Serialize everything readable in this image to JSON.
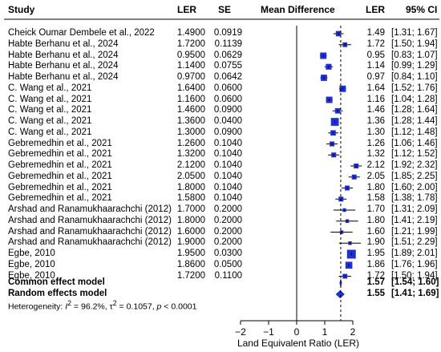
{
  "headers": {
    "study": "Study",
    "ler": "LER",
    "se": "SE",
    "md": "Mean Difference",
    "ler_ci": "LER",
    "ci": "95% CI"
  },
  "colors": {
    "accent": "#1f2fd6",
    "line": "#000000"
  },
  "chart_data": {
    "type": "forest",
    "xlabel": "Land Equivalent Ratio (LER)",
    "xlim": [
      -2,
      2.7
    ],
    "xticks": [
      -2,
      -1,
      0,
      1,
      2
    ],
    "xtick_labels": [
      "−2",
      "−1",
      "0",
      "1",
      "2"
    ],
    "grid": false,
    "studies": [
      {
        "study": "Cheick Oumar Dembele et al., 2022",
        "ler": "1.4900",
        "se": "0.0919",
        "est": 1.49,
        "lo": 1.31,
        "hi": 1.67,
        "label": "1.49",
        "ci": "[1.31; 1.67]",
        "w": 0.45
      },
      {
        "study": "Habte Berhanu et al., 2024",
        "ler": "1.7200",
        "se": "0.1139",
        "est": 1.72,
        "lo": 1.5,
        "hi": 1.94,
        "label": "1.72",
        "ci": "[1.50; 1.94]",
        "w": 0.35
      },
      {
        "study": "Habte Berhanu et al., 2024",
        "ler": "0.9500",
        "se": "0.0629",
        "est": 0.95,
        "lo": 0.83,
        "hi": 1.07,
        "label": "0.95",
        "ci": "[0.83; 1.07]",
        "w": 0.62
      },
      {
        "study": "Habte Berhanu et al., 2024",
        "ler": "1.1400",
        "se": "0.0755",
        "est": 1.14,
        "lo": 0.99,
        "hi": 1.29,
        "label": "1.14",
        "ci": "[0.99; 1.29]",
        "w": 0.52
      },
      {
        "study": "Habte Berhanu et al., 2024",
        "ler": "0.9700",
        "se": "0.0642",
        "est": 0.97,
        "lo": 0.84,
        "hi": 1.1,
        "label": "0.97",
        "ci": "[0.84; 1.10]",
        "w": 0.6
      },
      {
        "study": "C. Wang et al., 2021",
        "ler": "1.6400",
        "se": "0.0600",
        "est": 1.64,
        "lo": 1.52,
        "hi": 1.76,
        "label": "1.64",
        "ci": "[1.52; 1.76]",
        "w": 0.62
      },
      {
        "study": "C. Wang et al., 2021",
        "ler": "1.1600",
        "se": "0.0600",
        "est": 1.16,
        "lo": 1.04,
        "hi": 1.28,
        "label": "1.16",
        "ci": "[1.04; 1.28]",
        "w": 0.62
      },
      {
        "study": "C. Wang et al., 2021",
        "ler": "1.4600",
        "se": "0.0900",
        "est": 1.46,
        "lo": 1.28,
        "hi": 1.64,
        "label": "1.46",
        "ci": "[1.28; 1.64]",
        "w": 0.45
      },
      {
        "study": "C. Wang et al., 2021",
        "ler": "1.3600",
        "se": "0.0400",
        "est": 1.36,
        "lo": 1.28,
        "hi": 1.44,
        "label": "1.36",
        "ci": "[1.28; 1.44]",
        "w": 0.85
      },
      {
        "study": "C. Wang et al., 2021",
        "ler": "1.3000",
        "se": "0.0900",
        "est": 1.3,
        "lo": 1.12,
        "hi": 1.48,
        "label": "1.30",
        "ci": "[1.12; 1.48]",
        "w": 0.45
      },
      {
        "study": "Gebremedhin et al., 2021",
        "ler": "1.2600",
        "se": "0.1040",
        "est": 1.26,
        "lo": 1.06,
        "hi": 1.46,
        "label": "1.26",
        "ci": "[1.06; 1.46]",
        "w": 0.38
      },
      {
        "study": "Gebremedhin et al., 2021",
        "ler": "1.3200",
        "se": "0.1040",
        "est": 1.32,
        "lo": 1.12,
        "hi": 1.52,
        "label": "1.32",
        "ci": "[1.12; 1.52]",
        "w": 0.38
      },
      {
        "study": "Gebremedhin et al., 2021",
        "ler": "2.1200",
        "se": "0.1040",
        "est": 2.12,
        "lo": 1.92,
        "hi": 2.32,
        "label": "2.12",
        "ci": "[1.92; 2.32]",
        "w": 0.38
      },
      {
        "study": "Gebremedhin et al., 2021",
        "ler": "2.0500",
        "se": "0.1040",
        "est": 2.05,
        "lo": 1.85,
        "hi": 2.25,
        "label": "2.05",
        "ci": "[1.85; 2.25]",
        "w": 0.38
      },
      {
        "study": "Gebremedhin et al., 2021",
        "ler": "1.8000",
        "se": "0.1040",
        "est": 1.8,
        "lo": 1.6,
        "hi": 2.0,
        "label": "1.80",
        "ci": "[1.60; 2.00]",
        "w": 0.38
      },
      {
        "study": "Gebremedhin et al., 2021",
        "ler": "1.5800",
        "se": "0.1040",
        "est": 1.58,
        "lo": 1.38,
        "hi": 1.78,
        "label": "1.58",
        "ci": "[1.38; 1.78]",
        "w": 0.38
      },
      {
        "study": "Arshad and Ranamukhaarachchi (2012)",
        "ler": "1.7000",
        "se": "0.2000",
        "est": 1.7,
        "lo": 1.31,
        "hi": 2.09,
        "label": "1.70",
        "ci": "[1.31; 2.09]",
        "w": 0.18
      },
      {
        "study": "Arshad and Ranamukhaarachchi (2012)",
        "ler": "1.8000",
        "se": "0.2000",
        "est": 1.8,
        "lo": 1.41,
        "hi": 2.19,
        "label": "1.80",
        "ci": "[1.41; 2.19]",
        "w": 0.18
      },
      {
        "study": "Arshad and Ranamukhaarachchi (2012)",
        "ler": "1.6000",
        "se": "0.2000",
        "est": 1.6,
        "lo": 1.21,
        "hi": 1.99,
        "label": "1.60",
        "ci": "[1.21; 1.99]",
        "w": 0.18
      },
      {
        "study": "Arshad and Ranamukhaarachchi (2012)",
        "ler": "1.9000",
        "se": "0.2000",
        "est": 1.9,
        "lo": 1.51,
        "hi": 2.29,
        "label": "1.90",
        "ci": "[1.51; 2.29]",
        "w": 0.18
      },
      {
        "study": "Egbe, 2010",
        "ler": "1.9500",
        "se": "0.0300",
        "est": 1.95,
        "lo": 1.89,
        "hi": 2.01,
        "label": "1.95",
        "ci": "[1.89; 2.01]",
        "w": 1.0
      },
      {
        "study": "Egbe, 2010",
        "ler": "1.8600",
        "se": "0.0500",
        "est": 1.86,
        "lo": 1.76,
        "hi": 1.96,
        "label": "1.86",
        "ci": "[1.76; 1.96]",
        "w": 0.7
      },
      {
        "study": "Egbe, 2010",
        "ler": "1.7200",
        "se": "0.1100",
        "est": 1.72,
        "lo": 1.5,
        "hi": 1.94,
        "label": "1.72",
        "ci": "[1.50; 1.94]",
        "w": 0.36
      }
    ],
    "summaries": [
      {
        "label": "Common effect model",
        "est": 1.57,
        "lo": 1.54,
        "hi": 1.6,
        "value": "1.57",
        "ci": "[1.54; 1.60]"
      },
      {
        "label": "Random effects model",
        "est": 1.55,
        "lo": 1.41,
        "hi": 1.69,
        "value": "1.55",
        "ci": "[1.41; 1.69]"
      }
    ],
    "heterogeneity": {
      "prefix": "Heterogeneity: ",
      "i2_sym": "I",
      "i2": " = 96.2%, ",
      "tau_sym": "τ",
      "tau2": " = 0.1057, ",
      "p_sym": "p",
      "p": " < 0.0001"
    }
  }
}
